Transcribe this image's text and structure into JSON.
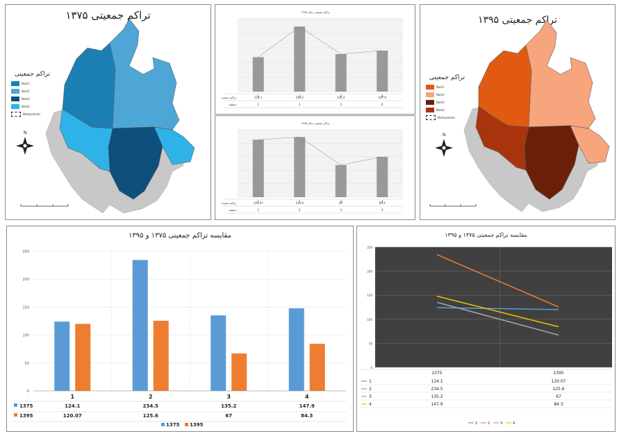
{
  "map_1375": {
    "title": "تراکم جمعیتی ۱۳۷۵",
    "legend_title": "تراکم جمعیتی",
    "legend_items": [
      "Nahi1",
      "Nahi2",
      "Nahi3",
      "Nahi4",
      "Nahiyeshahr"
    ],
    "colors": [
      "#1b7fb3",
      "#4ea6d6",
      "#0f4f7d",
      "#2eb2e8"
    ]
  },
  "map_1395": {
    "title": "تراکم جمعیتی ۱۳۹۵",
    "legend_title": "تراکم جمعیتی",
    "legend_items": [
      "Nahi1",
      "Nahi2",
      "Nahi3",
      "Nahi4",
      "Nahiyeshahr"
    ],
    "colors": [
      "#e05a12",
      "#f7a57d",
      "#6b1f0a",
      "#a8340d"
    ]
  },
  "compass_label": "N",
  "small_chart_top": {
    "title": "تراکم جمعیتی سال ۱۳۷۵",
    "row_labels": [
      "تراکم جمعیت",
      "منطقه"
    ],
    "categories": [
      "1",
      "2",
      "3",
      "4"
    ],
    "values": [
      124.1,
      234.5,
      135.2,
      147.9
    ]
  },
  "small_chart_bottom": {
    "title": "تراکم جمعیتی سال ۱۳۹۵",
    "row_labels": [
      "تراکم جمعیت",
      "منطقه"
    ],
    "categories": [
      "1",
      "2",
      "3",
      "4"
    ],
    "values": [
      120.07,
      125.6,
      67,
      84.3
    ]
  },
  "chart_data": [
    {
      "type": "bar",
      "title": "مقایسه تراکم جمعیتی ۱۳۷۵ و ۱۳۹۵",
      "categories": [
        "1",
        "2",
        "3",
        "4"
      ],
      "series": [
        {
          "name": "1375",
          "values": [
            124.1,
            234.5,
            135.2,
            147.9
          ],
          "color": "#5b9bd5"
        },
        {
          "name": "1395",
          "values": [
            120.07,
            125.6,
            67,
            84.3
          ],
          "color": "#ed7d31"
        }
      ],
      "yticks": [
        "0",
        "50",
        "100",
        "150",
        "200",
        "250"
      ],
      "ylim": [
        0,
        250
      ],
      "legend_position": "bottom"
    },
    {
      "type": "line",
      "title": "مقایسه تراکم جمعیتی ۱۳۷۵ و ۱۳۹۵",
      "x": [
        "1375",
        "1395"
      ],
      "series": [
        {
          "name": "1",
          "values": [
            124.1,
            120.07
          ],
          "color": "#5b9bd5"
        },
        {
          "name": "2",
          "values": [
            234.5,
            125.6
          ],
          "color": "#ed7d31"
        },
        {
          "name": "3",
          "values": [
            135.2,
            67
          ],
          "color": "#a5a5a5"
        },
        {
          "name": "4",
          "values": [
            147.9,
            84.3
          ],
          "color": "#ffc000"
        }
      ],
      "yticks": [
        "0",
        "50",
        "100",
        "150",
        "200",
        "250"
      ],
      "ylim": [
        0,
        250
      ],
      "legend_position": "bottom",
      "plot_background": "#404040"
    }
  ]
}
